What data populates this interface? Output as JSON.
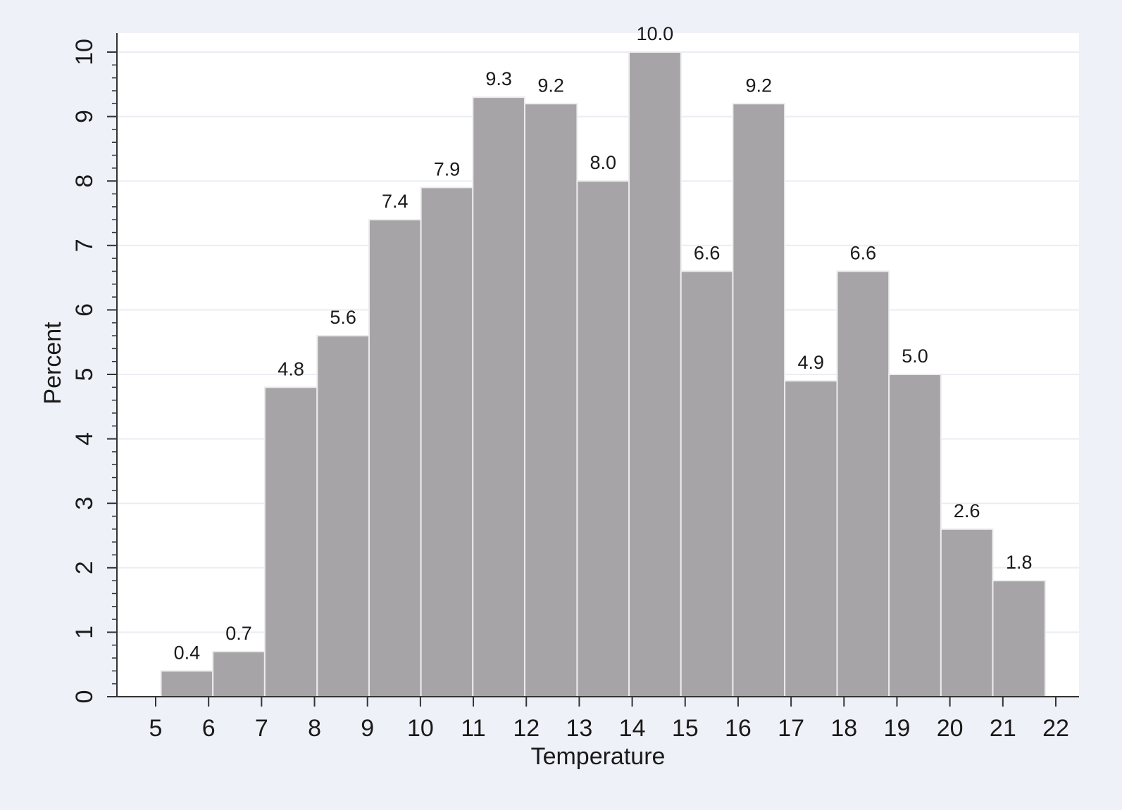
{
  "colors": {
    "background": "#eef1f7",
    "plot_region": "#ffffff",
    "gridline": "#eaedf3",
    "bar_fill": "#a7a4a7",
    "bar_stroke": "#ececec",
    "axis": "#333333",
    "text": "#1a1a1a"
  },
  "chart_data": {
    "type": "bar",
    "histogram": true,
    "title": "",
    "xlabel": "Temperature",
    "ylabel": "Percent",
    "xlim": [
      4,
      22.4
    ],
    "ylim": [
      0,
      10
    ],
    "x_ticks": [
      5,
      6,
      7,
      8,
      9,
      10,
      11,
      12,
      13,
      14,
      15,
      16,
      17,
      18,
      19,
      20,
      21,
      22
    ],
    "y_ticks": [
      0,
      1,
      2,
      3,
      4,
      5,
      6,
      7,
      8,
      9,
      10
    ],
    "y_tick_labels": [
      "0",
      "1",
      "2",
      "3",
      "4",
      "5",
      "6",
      "7",
      "8",
      "9",
      "10"
    ],
    "x_tick_labels": [
      "5",
      "6",
      "7",
      "8",
      "9",
      "10",
      "11",
      "12",
      "13",
      "14",
      "15",
      "16",
      "17",
      "18",
      "19",
      "20",
      "21",
      "22"
    ],
    "grid": true,
    "legend": "none",
    "bins": [
      {
        "start": 5.1,
        "end": 6.08,
        "value": 0.4,
        "label": "0.4"
      },
      {
        "start": 6.08,
        "end": 7.06,
        "value": 0.7,
        "label": "0.7"
      },
      {
        "start": 7.06,
        "end": 8.05,
        "value": 4.8,
        "label": "4.8"
      },
      {
        "start": 8.05,
        "end": 9.03,
        "value": 5.6,
        "label": "5.6"
      },
      {
        "start": 9.03,
        "end": 10.01,
        "value": 7.4,
        "label": "7.4"
      },
      {
        "start": 10.01,
        "end": 10.99,
        "value": 7.9,
        "label": "7.9"
      },
      {
        "start": 10.99,
        "end": 11.97,
        "value": 9.3,
        "label": "9.3"
      },
      {
        "start": 11.97,
        "end": 12.96,
        "value": 9.2,
        "label": "9.2"
      },
      {
        "start": 12.96,
        "end": 13.94,
        "value": 8.0,
        "label": "8.0"
      },
      {
        "start": 13.94,
        "end": 14.92,
        "value": 10.0,
        "label": "10.0"
      },
      {
        "start": 14.92,
        "end": 15.9,
        "value": 6.6,
        "label": "6.6"
      },
      {
        "start": 15.9,
        "end": 16.88,
        "value": 9.2,
        "label": "9.2"
      },
      {
        "start": 16.88,
        "end": 17.87,
        "value": 4.9,
        "label": "4.9"
      },
      {
        "start": 17.87,
        "end": 18.85,
        "value": 6.6,
        "label": "6.6"
      },
      {
        "start": 18.85,
        "end": 19.83,
        "value": 5.0,
        "label": "5.0"
      },
      {
        "start": 19.83,
        "end": 20.81,
        "value": 2.6,
        "label": "2.6"
      },
      {
        "start": 20.81,
        "end": 21.8,
        "value": 1.8,
        "label": "1.8"
      }
    ]
  }
}
